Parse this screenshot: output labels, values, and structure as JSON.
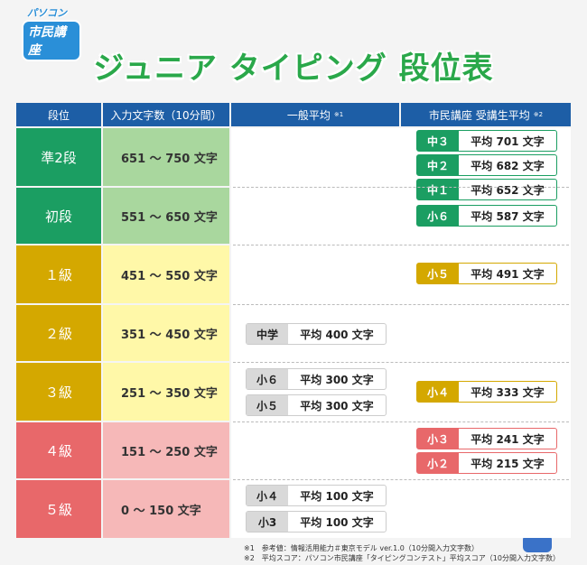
{
  "logo": {
    "line1": "パソコン",
    "line2": "市民講座"
  },
  "title": "ジュニア タイピング 段位表",
  "table": {
    "headers": [
      {
        "text": "段位"
      },
      {
        "text": "入力文字数（10分間）"
      },
      {
        "text": "一般平均",
        "note": "※1"
      },
      {
        "text": "市民講座 受講生平均",
        "note": "※2"
      }
    ],
    "rows": [
      {
        "rank": "準2段",
        "range": "651 ～ 750 文字",
        "general": [],
        "students": [
          {
            "label": "中３",
            "text": "平均 701 文字"
          },
          {
            "label": "中２",
            "text": "平均 682 文字"
          },
          {
            "label": "中１",
            "text": "平均 652 文字"
          }
        ]
      },
      {
        "rank": "初段",
        "range": "551 ～ 650 文字",
        "general": [],
        "students": [
          {
            "label": "小６",
            "text": "平均 587 文字"
          }
        ]
      },
      {
        "rank": "１級",
        "range": "451 ～ 550 文字",
        "general": [],
        "students": [
          {
            "label": "小５",
            "text": "平均 491 文字"
          }
        ]
      },
      {
        "rank": "２級",
        "range": "351 ～ 450 文字",
        "general": [
          {
            "label": "中学",
            "text": "平均 400 文字"
          }
        ],
        "students": []
      },
      {
        "rank": "３級",
        "range": "251 ～ 350 文字",
        "general": [
          {
            "label": "小６",
            "text": "平均 300 文字"
          },
          {
            "label": "小５",
            "text": "平均 300 文字"
          }
        ],
        "students": [
          {
            "label": "小４",
            "text": "平均 333 文字"
          }
        ]
      },
      {
        "rank": "４級",
        "range": "151 ～ 250 文字",
        "general": [],
        "students": [
          {
            "label": "小３",
            "text": "平均 241 文字"
          },
          {
            "label": "小２",
            "text": "平均 215 文字"
          }
        ]
      },
      {
        "rank": "５級",
        "range": "0 ～ 150 文字",
        "general": [
          {
            "label": "小４",
            "text": "平均 100 文字"
          },
          {
            "label": "小3",
            "text": "平均 100 文字"
          }
        ],
        "students": []
      }
    ]
  },
  "notes": [
    "※1　参考値：情報活用能力＃東京モデル ver.1.0（10分間入力文字数）",
    "※2　平均スコア：パソコン市民講座「タイピングコンテスト」平均スコア（10分間入力文字数）"
  ]
}
